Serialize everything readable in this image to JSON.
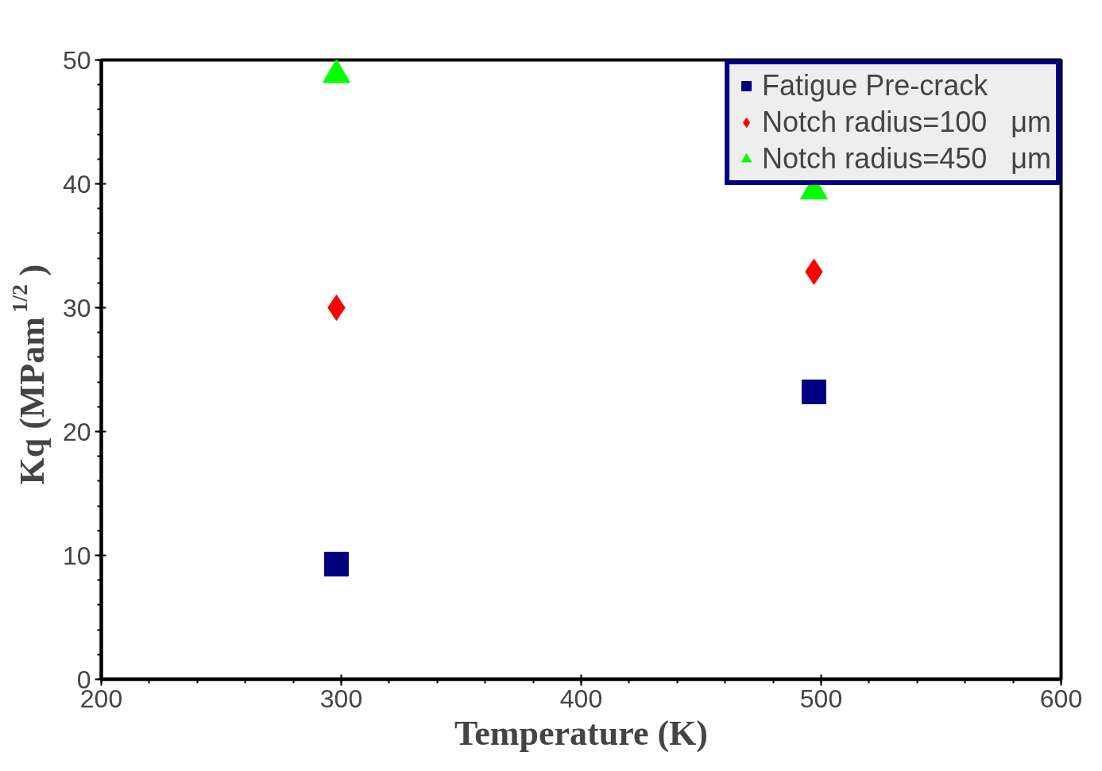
{
  "chart_data": {
    "type": "scatter",
    "xlabel": "Temperature (K)",
    "ylabel": "Kq (MPam$^{1/2}$)",
    "x": [
      298,
      497
    ],
    "series": [
      {
        "name": "Fatigue Pre-crack",
        "color": "#000080",
        "marker": "square",
        "values": [
          9.3,
          23.2
        ]
      },
      {
        "name": "Notch radius=100   μm",
        "color": "#ff0000",
        "marker": "diamond",
        "values": [
          30,
          32.9
        ]
      },
      {
        "name": "Notch radius=450   μm",
        "color": "#00ff00",
        "marker": "triangle",
        "values": [
          48.8,
          39.4
        ]
      }
    ],
    "xlim": [
      200,
      600
    ],
    "xticks": [
      200,
      300,
      400,
      500,
      600
    ],
    "ylim": [
      0,
      50
    ],
    "yticks": [
      0,
      10,
      20,
      30,
      40,
      50
    ],
    "grid": false,
    "legend": "top right"
  }
}
